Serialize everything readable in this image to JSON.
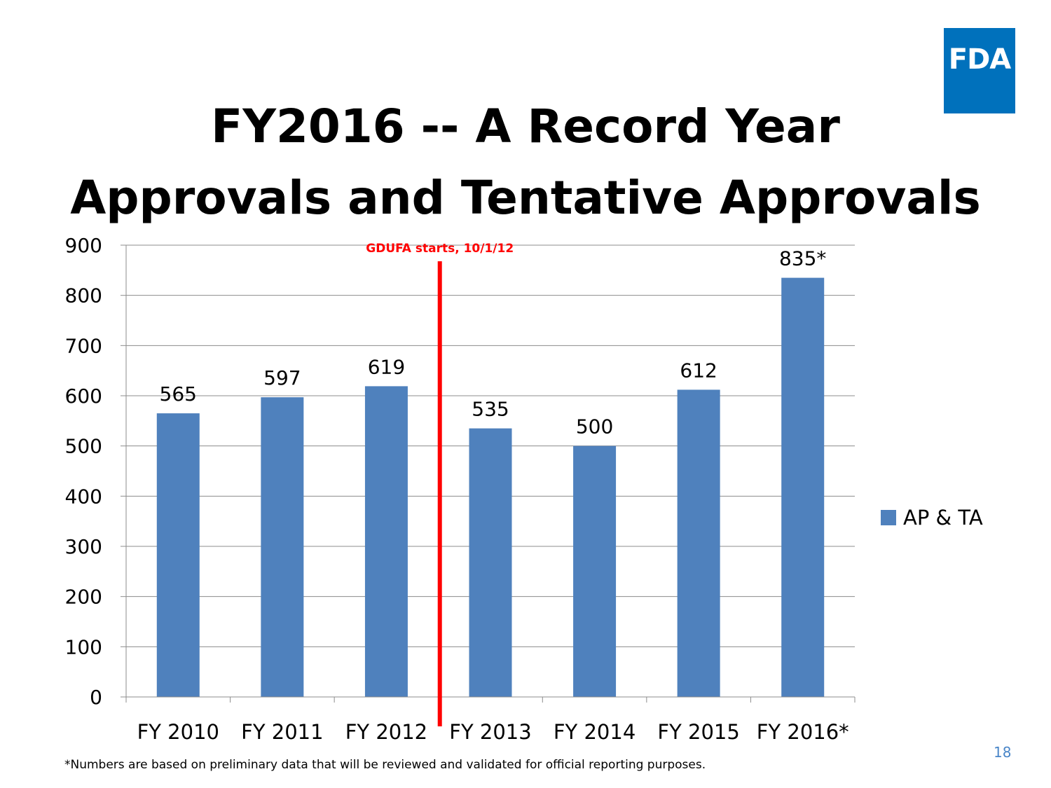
{
  "logo": {
    "text": "FDA",
    "color": "#0071bc"
  },
  "slide": {
    "title_line1": "FY2016 -- A Record Year",
    "title_line2": "Approvals and Tentative Approvals",
    "footnote": "*Numbers are based on preliminary data that will be reviewed and validated for official reporting purposes.",
    "page_number": "18",
    "page_number_color": "#4a86c8"
  },
  "chart_data": {
    "type": "bar",
    "title": "",
    "xlabel": "",
    "ylabel": "",
    "categories": [
      "FY 2010",
      "FY 2011",
      "FY 2012",
      "FY 2013",
      "FY 2014",
      "FY 2015",
      "FY 2016*"
    ],
    "series": [
      {
        "name": "AP & TA",
        "values": [
          565,
          597,
          619,
          535,
          500,
          612,
          835
        ],
        "labels": [
          "565",
          "597",
          "619",
          "535",
          "500",
          "612",
          "835*"
        ],
        "color": "#4f81bd"
      }
    ],
    "ylim": [
      0,
      900
    ],
    "yticks": [
      0,
      100,
      200,
      300,
      400,
      500,
      600,
      700,
      800,
      900
    ],
    "grid": true,
    "legend": "right",
    "annotation": {
      "text": "GDUFA starts, 10/1/12",
      "between": [
        "FY 2012",
        "FY 2013"
      ],
      "color": "#ff0000"
    }
  }
}
